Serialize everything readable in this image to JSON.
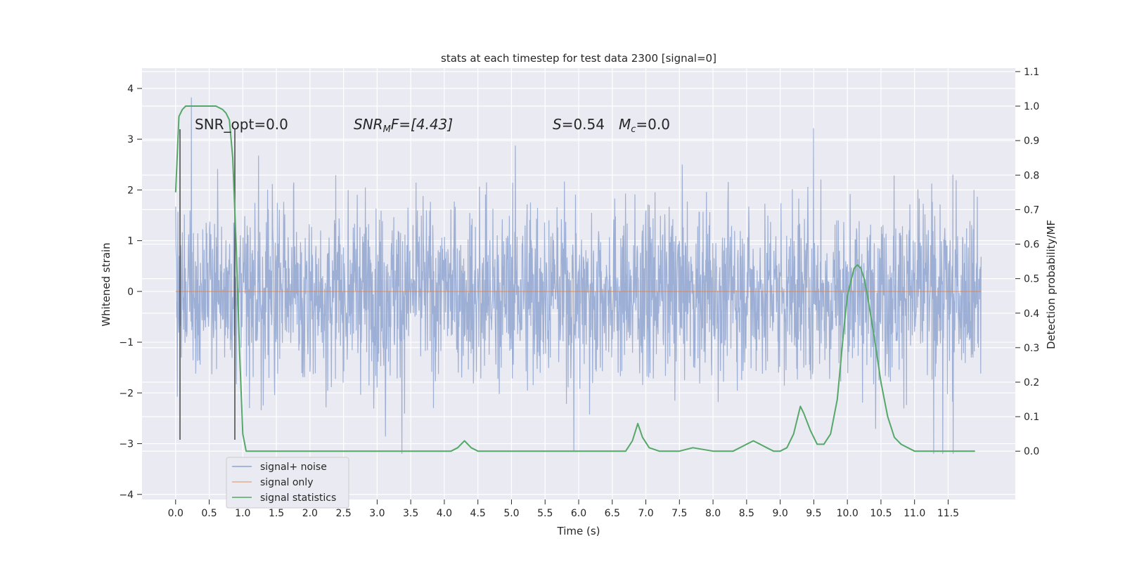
{
  "chart_data": {
    "type": "line",
    "title": "stats at each timestep for test data 2300 [signal=0]",
    "xlabel": "Time (s)",
    "ylabel": "Whitened strain",
    "y2label": "Detection probability/MF",
    "xlim": [
      -0.5,
      12.5
    ],
    "ylim": [
      -4.1,
      4.4
    ],
    "y2lim": [
      -0.14,
      1.11
    ],
    "grid": true,
    "x_ticks": [
      "0.0",
      "0.5",
      "1.0",
      "1.5",
      "2.0",
      "2.5",
      "3.0",
      "3.5",
      "4.0",
      "4.5",
      "5.0",
      "5.5",
      "6.0",
      "6.5",
      "7.0",
      "7.5",
      "8.0",
      "8.5",
      "9.0",
      "9.5",
      "10.0",
      "10.5",
      "11.0",
      "11.5"
    ],
    "y_ticks": [
      "4",
      "3",
      "2",
      "1",
      "0",
      "−1",
      "−2",
      "−3",
      "−4"
    ],
    "y2_ticks": [
      "1.1",
      "1.0",
      "0.9",
      "0.8",
      "0.7",
      "0.6",
      "0.5",
      "0.4",
      "0.3",
      "0.2",
      "0.1",
      "0.0"
    ],
    "annotations": {
      "snr_opt": "SNR_opt=0.0",
      "snr_mf_sym": "SNR",
      "snr_mf_sub": "M",
      "snr_mf_rest": "F=[4.43]",
      "s_sym": "S",
      "s_val": "=0.54",
      "mc_sym": "M",
      "mc_sub": "c",
      "mc_val": "=0.0"
    },
    "legend_position": "lower-left",
    "series": [
      {
        "name": "signal+ noise",
        "color": "#8fa5cf",
        "noise_range": [
          -3.2,
          4.1
        ],
        "x_range": [
          0.0,
          11.99
        ]
      },
      {
        "name": "signal only",
        "color": "#dd8452",
        "x": [
          0.0,
          11.99
        ],
        "y": [
          0.0,
          0.0
        ]
      },
      {
        "name": "signal statistics",
        "color": "#55a868",
        "x": [
          0.0,
          0.05,
          0.1,
          0.15,
          0.2,
          0.3,
          0.4,
          0.5,
          0.6,
          0.7,
          0.75,
          0.8,
          0.85,
          0.9,
          0.95,
          1.0,
          1.05,
          1.1,
          1.2,
          1.5,
          2.0,
          2.5,
          3.0,
          3.5,
          4.0,
          4.1,
          4.2,
          4.3,
          4.4,
          4.5,
          4.7,
          5.0,
          5.5,
          6.0,
          6.5,
          6.7,
          6.8,
          6.88,
          6.95,
          7.05,
          7.2,
          7.5,
          7.7,
          8.0,
          8.3,
          8.5,
          8.6,
          8.7,
          8.8,
          8.9,
          9.0,
          9.1,
          9.2,
          9.3,
          9.35,
          9.45,
          9.55,
          9.65,
          9.75,
          9.85,
          9.95,
          10.0,
          10.05,
          10.1,
          10.15,
          10.2,
          10.25,
          10.3,
          10.35,
          10.4,
          10.5,
          10.6,
          10.7,
          10.8,
          10.9,
          11.0,
          11.1,
          11.2,
          11.5,
          11.9
        ],
        "y": [
          0.75,
          0.97,
          0.99,
          1.0,
          1.0,
          1.0,
          1.0,
          1.0,
          1.0,
          0.99,
          0.98,
          0.96,
          0.85,
          0.6,
          0.3,
          0.05,
          0.0,
          0.0,
          0.0,
          0.0,
          0.0,
          0.0,
          0.0,
          0.0,
          0.0,
          0.0,
          0.01,
          0.03,
          0.01,
          0.0,
          0.0,
          0.0,
          0.0,
          0.0,
          0.0,
          0.0,
          0.03,
          0.08,
          0.04,
          0.01,
          0.0,
          0.0,
          0.01,
          0.0,
          0.0,
          0.02,
          0.03,
          0.02,
          0.01,
          0.0,
          0.0,
          0.01,
          0.05,
          0.13,
          0.11,
          0.06,
          0.02,
          0.02,
          0.05,
          0.15,
          0.36,
          0.45,
          0.49,
          0.53,
          0.54,
          0.53,
          0.5,
          0.45,
          0.39,
          0.33,
          0.2,
          0.1,
          0.04,
          0.02,
          0.01,
          0.0,
          0.0,
          0.0,
          0.0,
          0.0
        ]
      }
    ]
  }
}
